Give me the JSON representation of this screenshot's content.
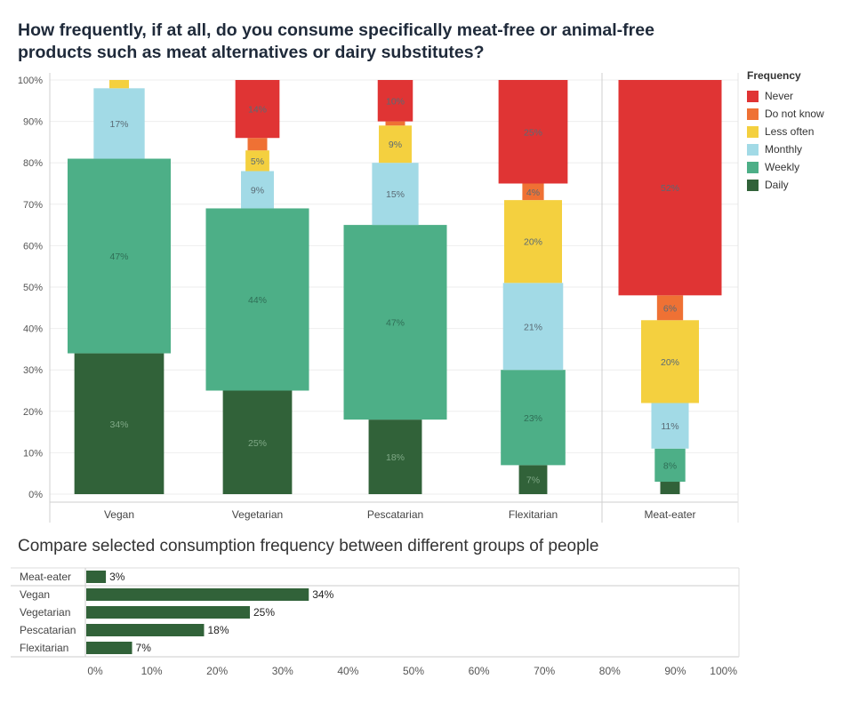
{
  "title": "How frequently, if at all, do you consume specifically meat-free or animal-free products such as meat alternatives or dairy substitutes?",
  "legend": {
    "title": "Frequency",
    "items": [
      {
        "label": "Never",
        "color": "#e03434"
      },
      {
        "label": "Do not know",
        "color": "#ef7134"
      },
      {
        "label": "Less often",
        "color": "#f4d03f"
      },
      {
        "label": "Monthly",
        "color": "#a2dae6"
      },
      {
        "label": "Weekly",
        "color": "#4daf87"
      },
      {
        "label": "Daily",
        "color": "#316239"
      }
    ]
  },
  "chart_data": [
    {
      "type": "bar",
      "stacked": true,
      "orientation": "vertical",
      "categories": [
        "Vegan",
        "Vegetarian",
        "Pescatarian",
        "Flexitarian",
        "Meat-eater"
      ],
      "ylim": [
        0,
        100
      ],
      "yticks": [
        "0%",
        "10%",
        "20%",
        "30%",
        "40%",
        "50%",
        "60%",
        "70%",
        "80%",
        "90%",
        "100%"
      ],
      "series": [
        {
          "name": "Daily",
          "values": [
            34,
            25,
            18,
            7,
            3
          ],
          "labels": [
            "34%",
            "25%",
            "18%",
            "7%",
            ""
          ]
        },
        {
          "name": "Weekly",
          "values": [
            47,
            44,
            47,
            23,
            8
          ],
          "labels": [
            "47%",
            "44%",
            "47%",
            "23%",
            "8%"
          ]
        },
        {
          "name": "Monthly",
          "values": [
            17,
            9,
            15,
            21,
            11
          ],
          "labels": [
            "17%",
            "9%",
            "15%",
            "21%",
            "11%"
          ]
        },
        {
          "name": "Less often",
          "values": [
            2,
            5,
            9,
            20,
            20
          ],
          "labels": [
            "",
            "5%",
            "9%",
            "20%",
            "20%"
          ]
        },
        {
          "name": "Do not know",
          "values": [
            0,
            3,
            1,
            4,
            6
          ],
          "labels": [
            "",
            "",
            "",
            "4%",
            "6%"
          ]
        },
        {
          "name": "Never",
          "values": [
            0,
            14,
            10,
            25,
            52
          ],
          "labels": [
            "",
            "14%",
            "10%",
            "25%",
            "52%"
          ]
        }
      ],
      "grid": true
    },
    {
      "title": "Compare selected consumption frequency between different groups of people",
      "type": "bar",
      "orientation": "horizontal",
      "categories": [
        "Meat-eater",
        "Vegan",
        "Vegetarian",
        "Pescatarian",
        "Flexitarian"
      ],
      "values": [
        3,
        34,
        25,
        18,
        7
      ],
      "labels": [
        "3%",
        "34%",
        "25%",
        "18%",
        "7%"
      ],
      "xlim": [
        0,
        100
      ],
      "xticks": [
        "0%",
        "10%",
        "20%",
        "30%",
        "40%",
        "50%",
        "60%",
        "70%",
        "80%",
        "90%",
        "100%"
      ],
      "color": "#316239"
    }
  ]
}
